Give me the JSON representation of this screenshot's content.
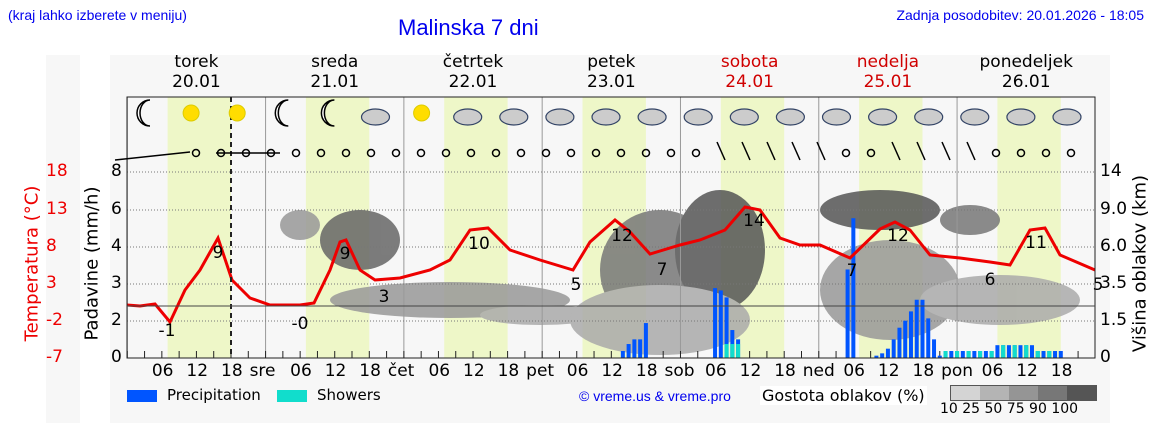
{
  "header": {
    "hint": "(kraj lahko izberete v meniju)",
    "title": "Malinska 7 dni",
    "updated": "Zadnja posodobitev: 20.01.2026 - 18:05"
  },
  "days": [
    {
      "name": "torek",
      "date": "20.01",
      "weekend": false
    },
    {
      "name": "sreda",
      "date": "21.01",
      "weekend": false
    },
    {
      "name": "četrtek",
      "date": "22.01",
      "weekend": false
    },
    {
      "name": "petek",
      "date": "23.01",
      "weekend": false
    },
    {
      "name": "sobota",
      "date": "24.01",
      "weekend": true
    },
    {
      "name": "nedelja",
      "date": "25.01",
      "weekend": true
    },
    {
      "name": "ponedeljek",
      "date": "26.01",
      "weekend": false
    }
  ],
  "x_ticks": [
    "06",
    "12",
    "18",
    "sre",
    "06",
    "12",
    "18",
    "čet",
    "06",
    "12",
    "18",
    "pet",
    "06",
    "12",
    "18",
    "sob",
    "06",
    "12",
    "18",
    "ned",
    "06",
    "12",
    "18",
    "pon",
    "06",
    "12",
    "18"
  ],
  "axes": {
    "temp_label": "Temperatura (°C)",
    "temp_ticks": [
      "18",
      "13",
      "8",
      "3",
      "-2",
      "-7"
    ],
    "precip_label": "Padavine (mm/h)",
    "precip_ticks": [
      "8",
      "6",
      "4",
      "3",
      "2",
      "0"
    ],
    "cloud_label": "Višina oblakov (km)",
    "cloud_ticks": [
      "14",
      "9.0",
      "6.0",
      "3.5",
      "1.5",
      "0"
    ]
  },
  "legend": {
    "precip": "Precipitation",
    "showers": "Showers",
    "copyright": "© vreme.us & vreme.pro",
    "density_label": "Gostota oblakov (%)",
    "density_ticks": [
      "10",
      "25",
      "50",
      "75",
      "90",
      "100"
    ]
  },
  "colors": {
    "precip": "#0055ff",
    "showers": "#11ddcc",
    "temp": "#ee0000",
    "daylight": "#eef7c8"
  },
  "chart_data": {
    "type": "line+bar",
    "title": "Malinska 7 dni",
    "temperature_labels": [
      {
        "day": "20.01",
        "min": -1,
        "max": 9
      },
      {
        "day": "21.01",
        "min": 0,
        "max": 9
      },
      {
        "day": "22.01",
        "min": 3,
        "max": 10
      },
      {
        "day": "23.01",
        "min": 5,
        "max": 12
      },
      {
        "day": "24.01",
        "min": 7,
        "max": 14
      },
      {
        "day": "25.01",
        "min": 7,
        "max": 12
      },
      {
        "day": "26.01",
        "min": 6,
        "max": 11
      },
      {
        "day": "27.01",
        "min": 5,
        "max": null
      }
    ],
    "precip_peaks_mm_h": [
      {
        "time": "23.01 18h",
        "value": 1.0
      },
      {
        "time": "24.01 06h",
        "value": 3.0
      },
      {
        "time": "24.01 23h",
        "value": 6.0
      },
      {
        "time": "25.01 12h",
        "value": 2.5
      },
      {
        "time": "26.01 12h",
        "value": 0.6
      }
    ],
    "ylim_precip": [
      0,
      8
    ],
    "ylim_temp": [
      -7,
      18
    ]
  }
}
